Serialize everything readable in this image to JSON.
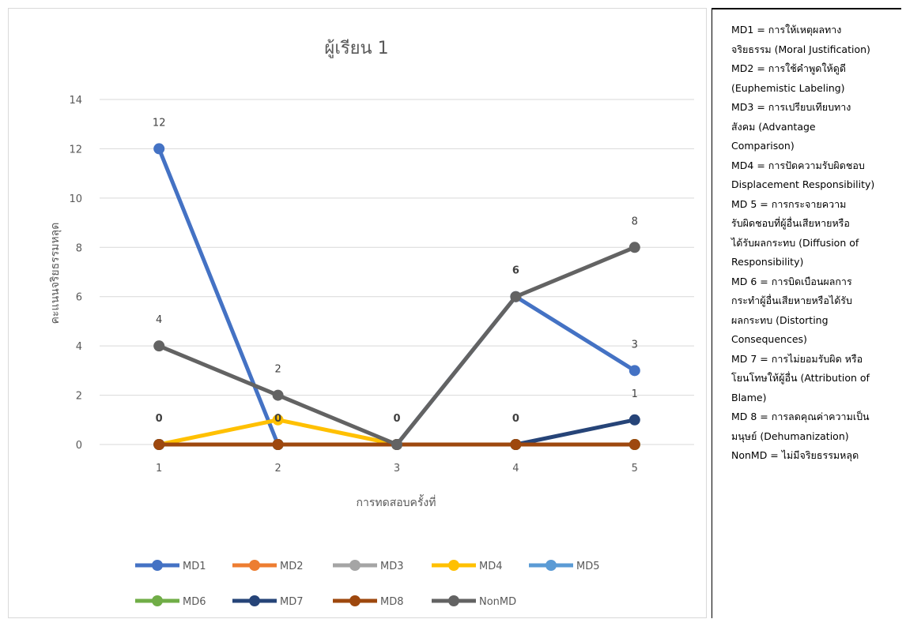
{
  "chart_data": {
    "type": "line",
    "title": "ผู้เรียน 1",
    "xlabel": "การทดสอบครั้งที่",
    "ylabel": "คะแนนจริยธรรมหลุด",
    "categories": [
      "1",
      "2",
      "3",
      "4",
      "5"
    ],
    "ylim": [
      0,
      14
    ],
    "yticks": [
      0,
      2,
      4,
      6,
      8,
      10,
      12,
      14
    ],
    "grid": true,
    "legend_position": "bottom",
    "series": [
      {
        "name": "MD1",
        "values": [
          12,
          0,
          0,
          6,
          3
        ],
        "color": "#4472C4"
      },
      {
        "name": "MD2",
        "values": [
          0,
          0,
          0,
          0,
          0
        ],
        "color": "#ED7D31"
      },
      {
        "name": "MD3",
        "values": [
          0,
          0,
          0,
          0,
          0
        ],
        "color": "#A5A5A5"
      },
      {
        "name": "MD4",
        "values": [
          0,
          1,
          0,
          0,
          0
        ],
        "color": "#FFC000"
      },
      {
        "name": "MD5",
        "values": [
          0,
          0,
          0,
          0,
          0
        ],
        "color": "#5B9BD5"
      },
      {
        "name": "MD6",
        "values": [
          0,
          0,
          0,
          0,
          0
        ],
        "color": "#70AD47"
      },
      {
        "name": "MD7",
        "values": [
          0,
          0,
          0,
          0,
          1
        ],
        "color": "#264478"
      },
      {
        "name": "MD8",
        "values": [
          0,
          0,
          0,
          0,
          0
        ],
        "color": "#9E480E"
      },
      {
        "name": "NonMD",
        "values": [
          4,
          2,
          0,
          6,
          8
        ],
        "color": "#636363"
      }
    ],
    "data_labels": [
      {
        "x": "1",
        "y": 12,
        "text": "12",
        "bold": false
      },
      {
        "x": "5",
        "y": 8,
        "text": "8",
        "bold": false
      },
      {
        "x": "4",
        "y": 6,
        "text": "6",
        "bold": true
      },
      {
        "x": "1",
        "y": 4,
        "text": "4",
        "bold": false
      },
      {
        "x": "5",
        "y": 3,
        "text": "3",
        "bold": false
      },
      {
        "x": "2",
        "y": 2,
        "text": "2",
        "bold": false
      },
      {
        "x": "5",
        "y": 1,
        "text": "1",
        "bold": false
      },
      {
        "x": "1",
        "y": 0,
        "text": "0",
        "bold": true
      },
      {
        "x": "2",
        "y": 0,
        "text": "0",
        "bold": true
      },
      {
        "x": "3",
        "y": 0,
        "text": "0",
        "bold": true
      },
      {
        "x": "4",
        "y": 0,
        "text": "0",
        "bold": true
      }
    ]
  },
  "notes": [
    "MD1 = การให้เหตุผลทาง",
    "จริยธรรม (Moral Justification)",
    "MD2 = การใช้คำพูดให้ดูดี",
    "(Euphemistic Labeling)",
    "MD3 = การเปรียบเทียบทาง",
    "สังคม (Advantage",
    "Comparison)",
    "MD4 = การปัดความรับผิดชอบ",
    "Displacement Responsibility)",
    "MD 5 = การกระจายความ",
    "รับผิดชอบที่ผู้อื่นเสียหายหรือ",
    "ได้รับผลกระทบ (Diffusion of",
    "Responsibility)",
    "MD 6 = การบิดเบือนผลการ",
    "กระทำผู้อื่นเสียหายหรือได้รับ",
    "ผลกระทบ (Distorting",
    "Consequences)",
    "MD 7 = การไม่ยอมรับผิด หรือ",
    "โยนโทษให้ผู้อื่น (Attribution of",
    "Blame)",
    "MD 8 = การลดคุณค่าความเป็น",
    "มนุษย์ (Dehumanization)",
    "NonMD = ไม่มีจริยธรรมหลุด"
  ]
}
